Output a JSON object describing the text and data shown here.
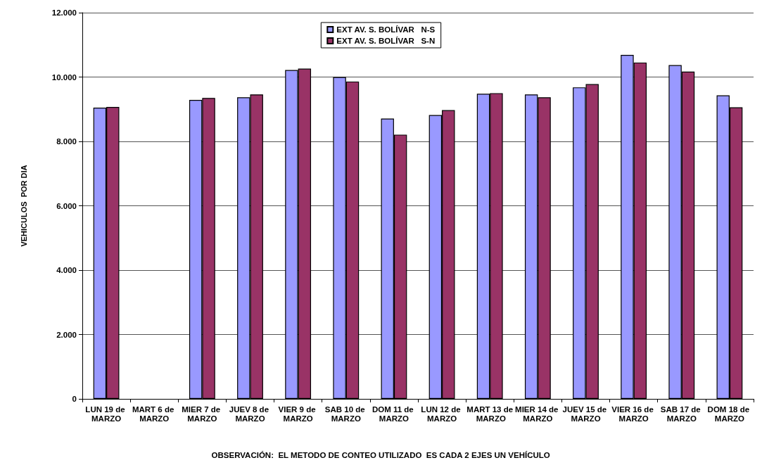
{
  "chart_data": {
    "type": "bar",
    "ylabel": "VEHICULOS  POR DIA",
    "categories": [
      "LUN 19 de MARZO",
      "MART 6 de MARZO",
      "MIER 7 de MARZO",
      "JUEV 8 de MARZO",
      "VIER 9 de MARZO",
      "SAB 10 de MARZO",
      "DOM 11 de MARZO",
      "LUN 12 de MARZO",
      "MART 13 de MARZO",
      "MIER 14 de MARZO",
      "JUEV 15 de MARZO",
      "VIER 16 de MARZO",
      "SAB 17 de MARZO",
      "DOM 18 de MARZO"
    ],
    "series": [
      {
        "name": "EXT AV. S. BOLÍVAR   N-S",
        "color": "#9999ff",
        "values": [
          9050,
          null,
          9290,
          9370,
          10220,
          10000,
          8710,
          8820,
          9480,
          9460,
          9680,
          10690,
          10370,
          9430
        ]
      },
      {
        "name": "EXT AV. S. BOLÍVAR   S-N",
        "color": "#993366",
        "values": [
          9070,
          null,
          9350,
          9460,
          10260,
          9860,
          8210,
          8970,
          9500,
          9370,
          9780,
          10450,
          10170,
          9060
        ]
      }
    ],
    "ylim": [
      0,
      12000
    ],
    "yticks": [
      {
        "value": 0,
        "label": "0"
      },
      {
        "value": 2000,
        "label": "2.000"
      },
      {
        "value": 4000,
        "label": "4.000"
      },
      {
        "value": 6000,
        "label": "6.000"
      },
      {
        "value": 8000,
        "label": "8.000"
      },
      {
        "value": 10000,
        "label": "10.000"
      },
      {
        "value": 12000,
        "label": "12.000"
      }
    ],
    "grid": "y",
    "legend": "top",
    "annotations": [
      "OBSERVACIÓN:  EL METODO DE CONTEO UTILIZADO  ES CADA 2 EJES UN VEHÍCULO"
    ]
  }
}
